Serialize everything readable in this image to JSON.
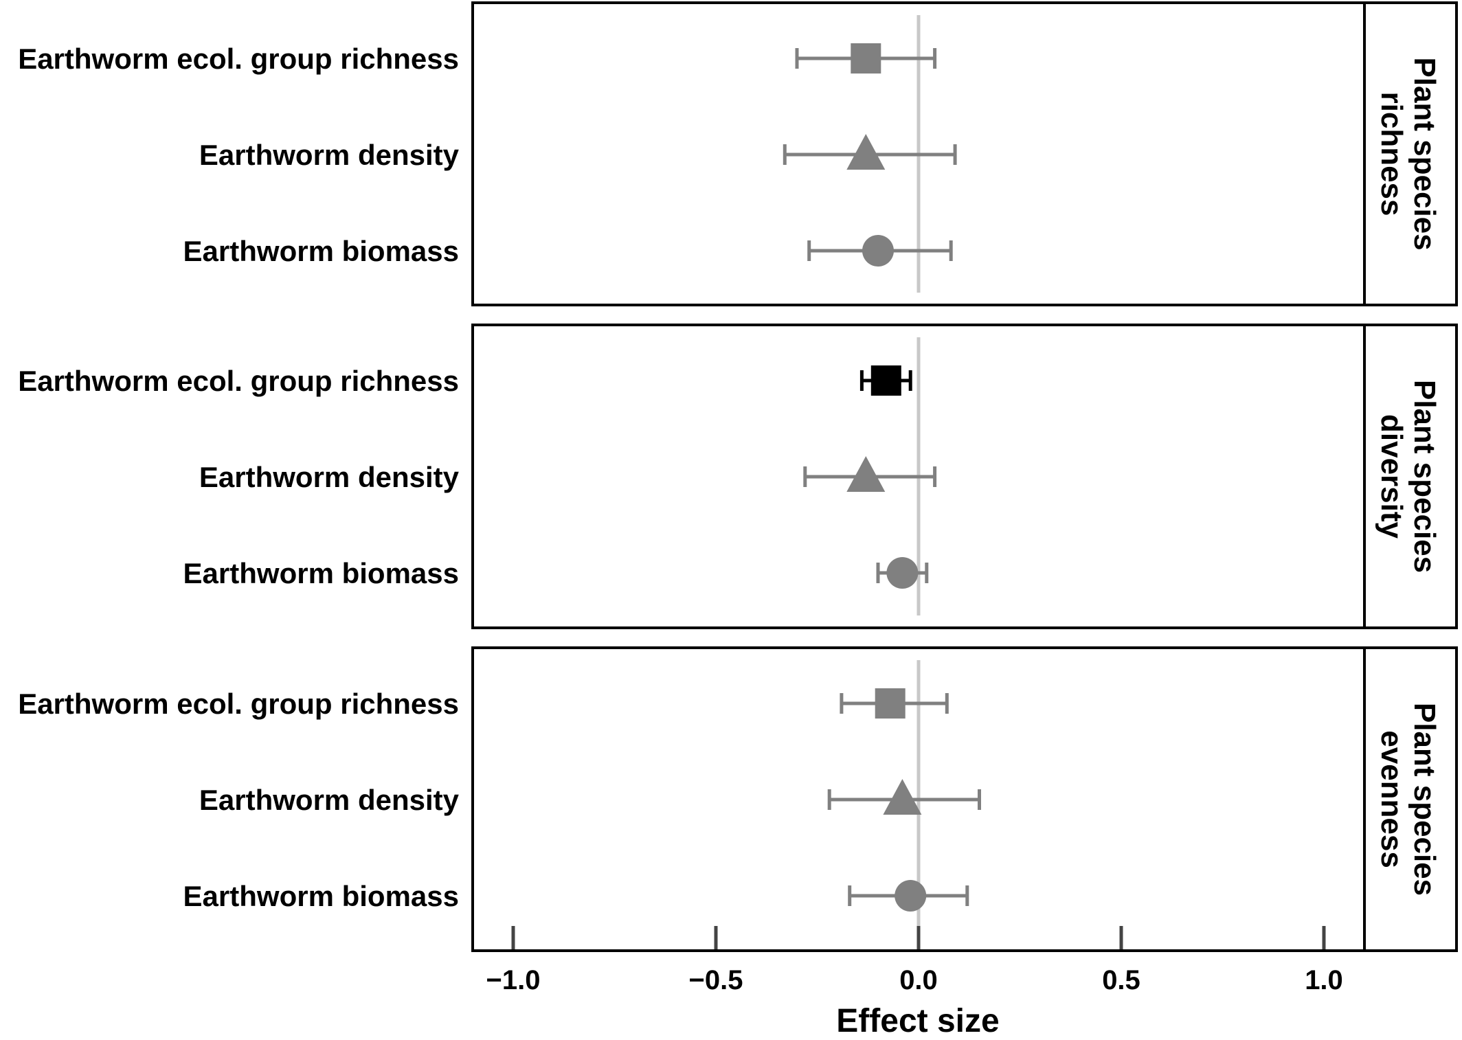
{
  "chart_data": {
    "type": "forest",
    "xlabel": "Effect size",
    "xlim": [
      -1.1,
      1.1
    ],
    "xticks": [
      -1.0,
      -0.5,
      0.0,
      0.5,
      1.0
    ],
    "xtick_labels": [
      "−1.0",
      "−0.5",
      "0.0",
      "0.5",
      "1.0"
    ],
    "reference_line": 0.0,
    "grid": false,
    "colors": {
      "significant": "#000000",
      "non_significant": "#808080",
      "zero_line": "#c8c8c8"
    },
    "panels": [
      {
        "strip_label": [
          "Plant species",
          "richness"
        ],
        "rows": [
          {
            "label": "Earthworm ecol. group richness",
            "shape": "square",
            "estimate": -0.13,
            "lower": -0.3,
            "upper": 0.04,
            "significant": false
          },
          {
            "label": "Earthworm density",
            "shape": "triangle",
            "estimate": -0.13,
            "lower": -0.33,
            "upper": 0.09,
            "significant": false
          },
          {
            "label": "Earthworm biomass",
            "shape": "circle",
            "estimate": -0.1,
            "lower": -0.27,
            "upper": 0.08,
            "significant": false
          }
        ]
      },
      {
        "strip_label": [
          "Plant species",
          "diversity"
        ],
        "rows": [
          {
            "label": "Earthworm ecol. group richness",
            "shape": "square",
            "estimate": -0.08,
            "lower": -0.14,
            "upper": -0.02,
            "significant": true
          },
          {
            "label": "Earthworm density",
            "shape": "triangle",
            "estimate": -0.13,
            "lower": -0.28,
            "upper": 0.04,
            "significant": false
          },
          {
            "label": "Earthworm biomass",
            "shape": "circle",
            "estimate": -0.04,
            "lower": -0.1,
            "upper": 0.02,
            "significant": false
          }
        ]
      },
      {
        "strip_label": [
          "Plant species",
          "evenness"
        ],
        "rows": [
          {
            "label": "Earthworm ecol. group richness",
            "shape": "square",
            "estimate": -0.07,
            "lower": -0.19,
            "upper": 0.07,
            "significant": false
          },
          {
            "label": "Earthworm density",
            "shape": "triangle",
            "estimate": -0.04,
            "lower": -0.22,
            "upper": 0.15,
            "significant": false
          },
          {
            "label": "Earthworm biomass",
            "shape": "circle",
            "estimate": -0.02,
            "lower": -0.17,
            "upper": 0.12,
            "significant": false
          }
        ]
      }
    ]
  }
}
